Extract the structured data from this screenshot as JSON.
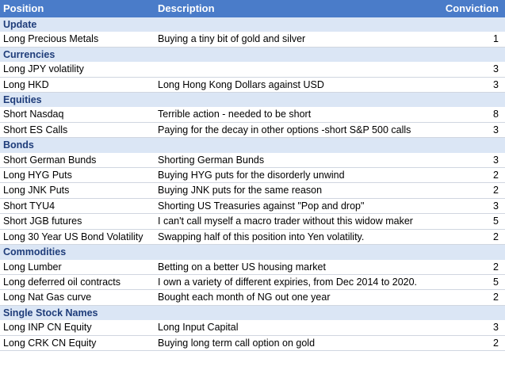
{
  "headers": {
    "position": "Position",
    "description": "Description",
    "conviction": "Conviction"
  },
  "sections": [
    {
      "title": "Update",
      "rows": [
        {
          "position": "Long Precious Metals",
          "description": "Buying a tiny bit of gold and silver",
          "conviction": "1"
        }
      ]
    },
    {
      "title": "Currencies",
      "rows": [
        {
          "position": "Long JPY volatility",
          "description": "",
          "conviction": "3"
        },
        {
          "position": "Long HKD",
          "description": "Long Hong Kong Dollars against USD",
          "conviction": "3"
        }
      ]
    },
    {
      "title": "Equities",
      "rows": [
        {
          "position": "Short Nasdaq",
          "description": "Terrible action - needed to be short",
          "conviction": "8"
        },
        {
          "position": "Short ES Calls",
          "description": "Paying for the decay in other options -short S&P 500 calls",
          "conviction": "3"
        }
      ]
    },
    {
      "title": "Bonds",
      "rows": [
        {
          "position": "Short German Bunds",
          "description": "Shorting German Bunds",
          "conviction": "3"
        },
        {
          "position": "Long HYG Puts",
          "description": "Buying HYG puts for the disorderly unwind",
          "conviction": "2"
        },
        {
          "position": "Long JNK Puts",
          "description": "Buying JNK puts for the same reason",
          "conviction": "2"
        },
        {
          "position": "Short TYU4",
          "description": "Shorting US Treasuries against \"Pop and drop\"",
          "conviction": "3"
        },
        {
          "position": "Short JGB futures",
          "description": "I can't call myself a macro trader without this widow maker",
          "conviction": "5"
        },
        {
          "position": "Long 30 Year US Bond Volatility",
          "description": "Swapping half of this position into Yen volatility.",
          "conviction": "2"
        }
      ]
    },
    {
      "title": "Commodities",
      "rows": [
        {
          "position": "Long Lumber",
          "description": "Betting on a better US housing market",
          "conviction": "2"
        },
        {
          "position": "Long deferred oil contracts",
          "description": "I own a variety of different expiries, from Dec 2014 to 2020.",
          "conviction": "5"
        },
        {
          "position": "Long Nat Gas curve",
          "description": "Bought each month of NG out one year",
          "conviction": "2"
        }
      ]
    },
    {
      "title": "Single Stock Names",
      "rows": [
        {
          "position": "Long INP CN Equity",
          "description": "Long Input Capital",
          "conviction": "3"
        },
        {
          "position": "Long CRK CN Equity",
          "description": "Buying long term call option on gold",
          "conviction": "2"
        }
      ]
    }
  ]
}
